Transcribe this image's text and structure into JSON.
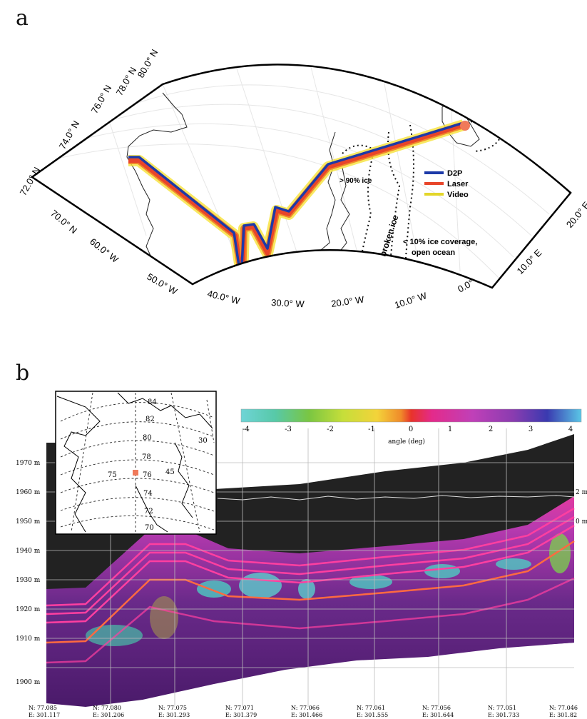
{
  "panel_a": {
    "letter": "a",
    "lat_labels": [
      "80.0° N",
      "78.0° N",
      "76.0° N",
      "74.0° N",
      "72.0° N",
      "70.0° N"
    ],
    "lon_labels": [
      "60.0° W",
      "50.0° W",
      "40.0° W",
      "30.0° W",
      "20.0° W",
      "10.0° W",
      "0.0°",
      "10.0° E",
      "20.0° E"
    ],
    "legend": [
      {
        "label": "D2P",
        "color": "#1c3aa8"
      },
      {
        "label": "Laser",
        "color": "#e8452a"
      },
      {
        "label": "Video",
        "color": "#e3d62a"
      }
    ],
    "annotations": {
      "ice_90": "> 90% ice",
      "broken_ice": "broken ice",
      "open_ocean_line1": "< 10%  ice coverage,",
      "open_ocean_line2": "open ocean"
    }
  },
  "panel_b": {
    "letter": "b",
    "colorbar": {
      "ticks": [
        "-4",
        "-3",
        "-2",
        "-1",
        "0",
        "1",
        "2",
        "3",
        "4"
      ],
      "label": "angle (deg)"
    },
    "y_ticks": [
      "1970 m",
      "1960 m",
      "1950 m",
      "1940 m",
      "1930 m",
      "1920 m",
      "1910 m",
      "1900 m"
    ],
    "right_ticks": [
      "2 m",
      "0 m"
    ],
    "x_labels": [
      {
        "n": "N: 77.085",
        "e": "E: 301.117"
      },
      {
        "n": "N: 77.080",
        "e": "E: 301.206"
      },
      {
        "n": "N: 77.075",
        "e": "E: 301.293"
      },
      {
        "n": "N: 77.071",
        "e": "E: 301.379"
      },
      {
        "n": "N: 77.066",
        "e": "E: 301.466"
      },
      {
        "n": "N: 77.061",
        "e": "E: 301.555"
      },
      {
        "n": "N: 77.056",
        "e": "E: 301.644"
      },
      {
        "n": "N: 77.051",
        "e": "E: 301.733"
      },
      {
        "n": "N: 77.046",
        "e": "E: 301.82"
      }
    ],
    "inset": {
      "lat_labels": [
        "84",
        "82",
        "80",
        "78",
        "76",
        "74",
        "72",
        "70"
      ],
      "lon_labels": [
        "75",
        "45",
        "30"
      ]
    }
  }
}
